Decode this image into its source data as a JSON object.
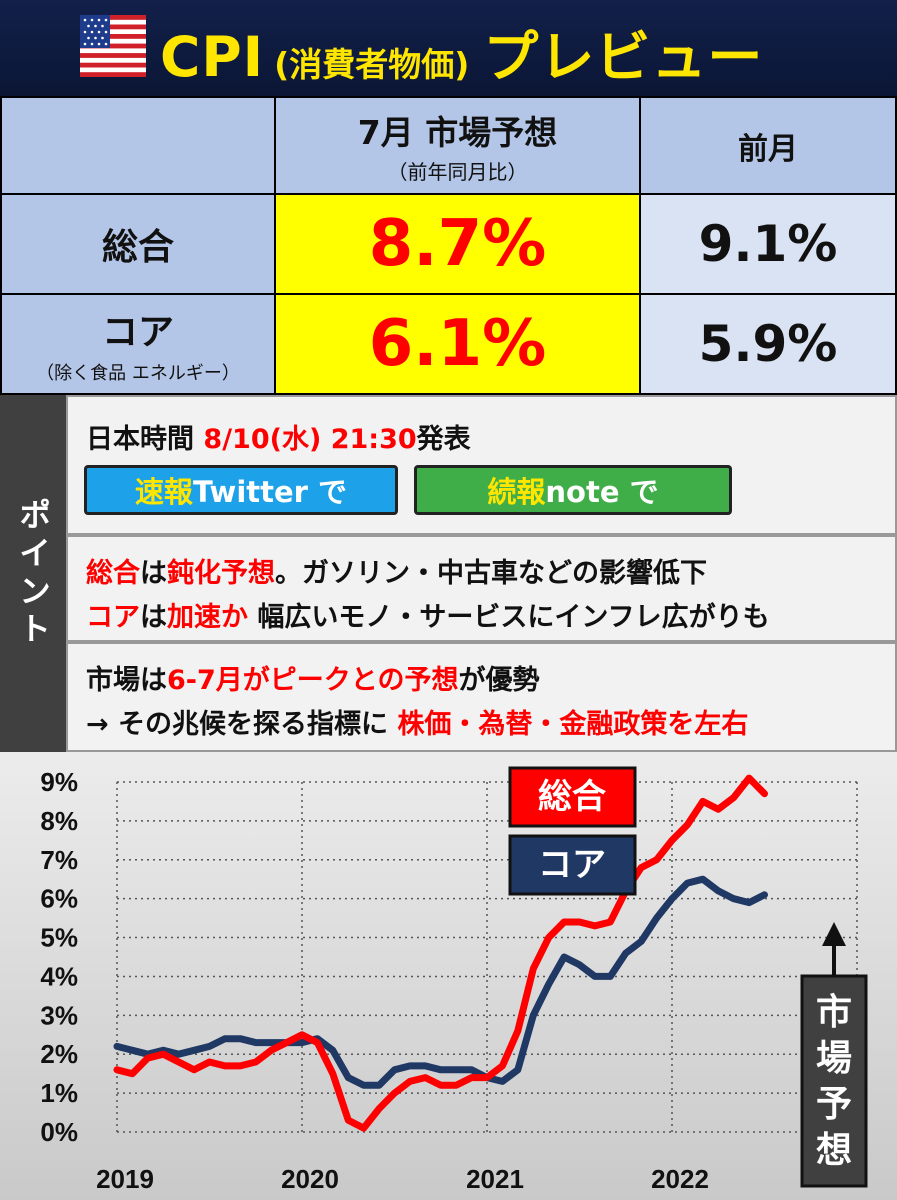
{
  "header": {
    "title_main": "CPI",
    "title_paren": "(消費者物価)",
    "title_tail": "プレビュー",
    "flag_icon": "us-flag-icon"
  },
  "table": {
    "col_forecast_label": "7月 市場予想",
    "col_forecast_sub": "（前年同月比）",
    "col_prev_label": "前月",
    "rows": [
      {
        "label": "総合",
        "sub": "",
        "forecast": "8.7%",
        "previous": "9.1%"
      },
      {
        "label": "コア",
        "sub": "（除く食品 エネルギー）",
        "forecast": "6.1%",
        "previous": "5.9%"
      }
    ]
  },
  "points": {
    "side_label": "ポイント",
    "release_prefix": "日本時間 ",
    "release_time": "8/10(水) 21:30",
    "release_suffix": "発表",
    "btn_twitter": {
      "hl": "速報",
      "rest": " Twitter で",
      "color": "#1da1e8"
    },
    "btn_note": {
      "hl": "続報",
      "rest": " note で",
      "color": "#3fae49"
    },
    "p2_line1": [
      {
        "t": "総合",
        "red": true
      },
      {
        "t": "は",
        "red": false
      },
      {
        "t": "鈍化予想",
        "red": true
      },
      {
        "t": "。ガソリン・中古車などの影響低下",
        "red": false
      }
    ],
    "p2_line2": [
      {
        "t": "コア",
        "red": true
      },
      {
        "t": "は",
        "red": false
      },
      {
        "t": "加速か",
        "red": true
      },
      {
        "t": " 幅広いモノ・サービスにインフレ広がりも",
        "red": false
      }
    ],
    "p3_line1": [
      {
        "t": "市場は",
        "red": false
      },
      {
        "t": "6-7月がピークとの予想",
        "red": true
      },
      {
        "t": "が優勢",
        "red": false
      }
    ],
    "p3_line2": [
      {
        "t": "→ その兆候を探る指標に ",
        "red": false
      },
      {
        "t": "株価・為替・金融政策を左右",
        "red": true
      }
    ]
  },
  "chart_data": {
    "type": "line",
    "ylim": [
      0,
      9
    ],
    "yticks": [
      "0%",
      "1%",
      "2%",
      "3%",
      "4%",
      "5%",
      "6%",
      "7%",
      "8%",
      "9%"
    ],
    "xticks": [
      "2019",
      "2020",
      "2021",
      "2022"
    ],
    "x_start": "2019-01",
    "x_end": "2022-07",
    "grid": true,
    "series": [
      {
        "name": "総合",
        "color": "#ff0000",
        "values": [
          1.6,
          1.5,
          1.9,
          2.0,
          1.8,
          1.6,
          1.8,
          1.7,
          1.7,
          1.8,
          2.1,
          2.3,
          2.5,
          2.3,
          1.5,
          0.3,
          0.1,
          0.6,
          1.0,
          1.3,
          1.4,
          1.2,
          1.2,
          1.4,
          1.4,
          1.7,
          2.6,
          4.2,
          5.0,
          5.4,
          5.4,
          5.3,
          5.4,
          6.2,
          6.8,
          7.0,
          7.5,
          7.9,
          8.5,
          8.3,
          8.6,
          9.1,
          8.7
        ]
      },
      {
        "name": "コア",
        "color": "#1f3864",
        "values": [
          2.2,
          2.1,
          2.0,
          2.1,
          2.0,
          2.1,
          2.2,
          2.4,
          2.4,
          2.3,
          2.3,
          2.3,
          2.3,
          2.4,
          2.1,
          1.4,
          1.2,
          1.2,
          1.6,
          1.7,
          1.7,
          1.6,
          1.6,
          1.6,
          1.4,
          1.3,
          1.6,
          3.0,
          3.8,
          4.5,
          4.3,
          4.0,
          4.0,
          4.6,
          4.9,
          5.5,
          6.0,
          6.4,
          6.5,
          6.2,
          6.0,
          5.9,
          6.1
        ]
      }
    ],
    "legend": [
      "総合",
      "コア"
    ],
    "annotation": "市場予想"
  }
}
